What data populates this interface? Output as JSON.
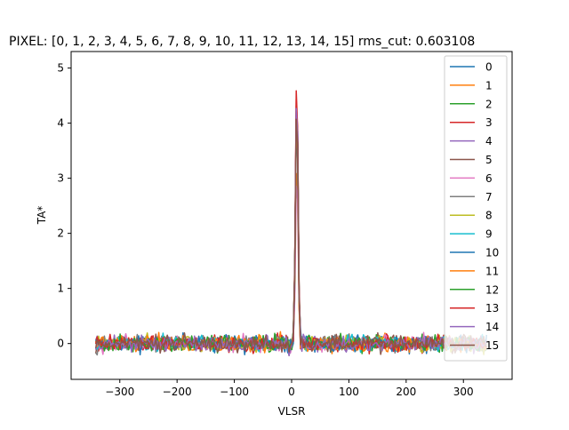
{
  "chart_data": {
    "type": "line",
    "title": "PIXEL: [0, 1, 2, 3, 4, 5, 6, 7, 8, 9, 10, 11, 12, 13, 14, 15]    rms_cut: 0.603108",
    "xlabel": "VLSR",
    "ylabel": "TA*",
    "xlim": [
      -385,
      385
    ],
    "ylim": [
      -0.65,
      5.3
    ],
    "x_ticks": [
      -300,
      -200,
      -100,
      0,
      100,
      200,
      300
    ],
    "x_tick_labels": [
      "−300",
      "−200",
      "−100",
      "0",
      "100",
      "200",
      "300"
    ],
    "y_ticks": [
      0,
      1,
      2,
      3,
      4,
      5
    ],
    "y_tick_labels": [
      "0",
      "1",
      "2",
      "3",
      "4",
      "5"
    ],
    "grid": false,
    "legend_position": "top-right",
    "noise_rms_approx": 0.1,
    "x_range_data": [
      -342,
      342
    ],
    "line_feature": {
      "center_velocity": 9,
      "peak_values": [
        4.7,
        3.45,
        4.75,
        4.95,
        4.6,
        4.65,
        3.3,
        4.4,
        4.55,
        4.45,
        4.3,
        4.45,
        4.6,
        4.95,
        4.7,
        4.65
      ]
    },
    "series": [
      {
        "name": "0",
        "color": "#1f77b4"
      },
      {
        "name": "1",
        "color": "#ff7f0e"
      },
      {
        "name": "2",
        "color": "#2ca02c"
      },
      {
        "name": "3",
        "color": "#d62728"
      },
      {
        "name": "4",
        "color": "#9467bd"
      },
      {
        "name": "5",
        "color": "#8c564b"
      },
      {
        "name": "6",
        "color": "#e377c2"
      },
      {
        "name": "7",
        "color": "#7f7f7f"
      },
      {
        "name": "8",
        "color": "#bcbd22"
      },
      {
        "name": "9",
        "color": "#17becf"
      },
      {
        "name": "10",
        "color": "#1f77b4"
      },
      {
        "name": "11",
        "color": "#ff7f0e"
      },
      {
        "name": "12",
        "color": "#2ca02c"
      },
      {
        "name": "13",
        "color": "#d62728"
      },
      {
        "name": "14",
        "color": "#9467bd"
      },
      {
        "name": "15",
        "color": "#8c564b"
      }
    ]
  }
}
